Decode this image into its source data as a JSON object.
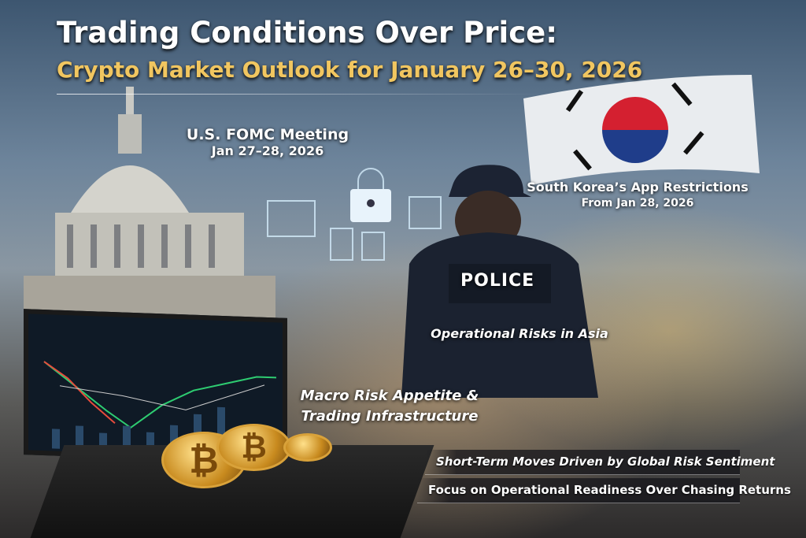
{
  "header": {
    "title": "Trading Conditions Over Price:",
    "subtitle": "Crypto Market Outlook for January 26–30, 2026"
  },
  "labels": {
    "fomc": {
      "title": "U.S. FOMC Meeting",
      "date": "Jan 27–28, 2026"
    },
    "korea": {
      "title": "South Korea’s App Restrictions",
      "date": "From Jan 28, 2026"
    },
    "asia": "Operational Risks in Asia",
    "macro": {
      "line1": "Macro Risk Appetite &",
      "line2": "Trading Infrastructure"
    }
  },
  "police_text": "POLICE",
  "bottom": [
    "Short-Term Moves Driven by Global Risk Sentiment",
    "Focus on Operational Readiness Over Chasing Returns"
  ],
  "coin_symbol": "₿",
  "icons": [
    "capitol-building",
    "south-korea-flag",
    "lock-icon",
    "laptop-candlestick-chart",
    "bitcoin-coins",
    "police-officer"
  ],
  "colors": {
    "title": "#ffffff",
    "subtitle": "#f1c660"
  }
}
